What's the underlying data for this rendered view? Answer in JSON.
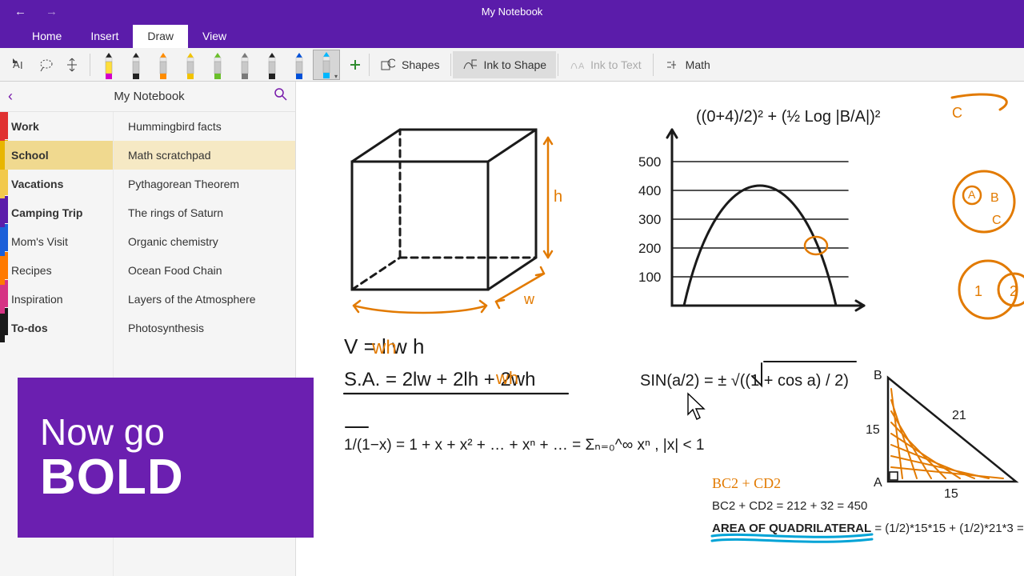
{
  "app": {
    "title": "My Notebook"
  },
  "ribbon": {
    "tabs": [
      "Home",
      "Insert",
      "Draw",
      "View"
    ],
    "active": "Draw"
  },
  "toolbar": {
    "pens": [
      {
        "tip": "#222222",
        "body": "#ffde3a",
        "cap": "#d400c8"
      },
      {
        "tip": "#222222",
        "body": "#c9c9c9",
        "cap": "#222222"
      },
      {
        "tip": "#ff8c00",
        "body": "#c9c9c9",
        "cap": "#ff8c00"
      },
      {
        "tip": "#f2c300",
        "body": "#c9c9c9",
        "cap": "#f2c300"
      },
      {
        "tip": "#6abf2a",
        "body": "#c9c9c9",
        "cap": "#6abf2a"
      },
      {
        "tip": "#7a7a7a",
        "body": "#c9c9c9",
        "cap": "#7a7a7a"
      },
      {
        "tip": "#222222",
        "body": "#c9c9c9",
        "cap": "#222222"
      },
      {
        "tip": "#0050d8",
        "body": "#c9c9c9",
        "cap": "#0050d8"
      },
      {
        "tip": "#00b7ff",
        "body": "#c9c9c9",
        "cap": "#00b7ff",
        "selected": true
      }
    ],
    "shapes": "Shapes",
    "ink_to_shape": "Ink to Shape",
    "ink_to_text": "Ink to Text",
    "math": "Math"
  },
  "notebook": {
    "name": "My Notebook",
    "sections": [
      {
        "label": "Work",
        "color": "#e03131",
        "bold": true
      },
      {
        "label": "School",
        "color": "#e8b600",
        "selected": true
      },
      {
        "label": "Vacations",
        "color": "#f2c94c",
        "bold": true
      },
      {
        "label": "Camping Trip",
        "color": "#5b1caa",
        "bold": true
      },
      {
        "label": "Mom's Visit",
        "color": "#1b5fd9"
      },
      {
        "label": "Recipes",
        "color": "#ff7a00"
      },
      {
        "label": "Inspiration",
        "color": "#d63384"
      },
      {
        "label": "To-dos",
        "color": "#1a1a1a",
        "bold": true
      }
    ],
    "pages": [
      {
        "label": "Hummingbird facts"
      },
      {
        "label": "Math scratchpad",
        "selected": true
      },
      {
        "label": "Pythagorean Theorem"
      },
      {
        "label": "The rings of Saturn"
      },
      {
        "label": "Organic chemistry"
      },
      {
        "label": "Ocean Food Chain"
      },
      {
        "label": "Layers of the Atmosphere"
      },
      {
        "label": "Photosynthesis"
      }
    ]
  },
  "promo": {
    "line1": "Now go",
    "line2": "BOLD"
  },
  "canvas": {
    "hand_font": "Segoe Script, Comic Sans MS, cursive",
    "colors": {
      "black": "#1a1a1a",
      "orange": "#e27a00",
      "blue": "#00a3d6"
    },
    "cube_dim_labels": {
      "h": "h",
      "w": "w"
    },
    "chart": {
      "yticks": [
        "500",
        "400",
        "300",
        "200",
        "100"
      ]
    },
    "formulas": {
      "volume": "V = l w h",
      "sa": "S.A. = 2lw + 2lh + 2wh",
      "series": "1/(1−x) = 1 + x + x² + … + xⁿ + … = Σₙ₌₀^∞ xⁿ ,  |x| < 1",
      "sin": "SIN(a/2) = ± √((1 + cos a) / 2)",
      "top": "((0+4)/2)²  +  (½ Log |B/A|)²"
    },
    "triangle": {
      "B": "B",
      "A": "A",
      "side_ab": "15",
      "side_bc": "21",
      "side_ac": "15"
    },
    "math_print": {
      "bc2_hand": "BC2 + CD2",
      "bc2": "BC2 + CD2 = 212 + 32 = 450",
      "area_label": "AREA OF QUADRILATERAL",
      "area_rest": " = (1/2)*15*15 + (1/2)*21*3 ="
    },
    "venn": {
      "A": "A",
      "B": "B",
      "C": "C",
      "one": "1",
      "two": "2",
      "topC": "C"
    }
  }
}
